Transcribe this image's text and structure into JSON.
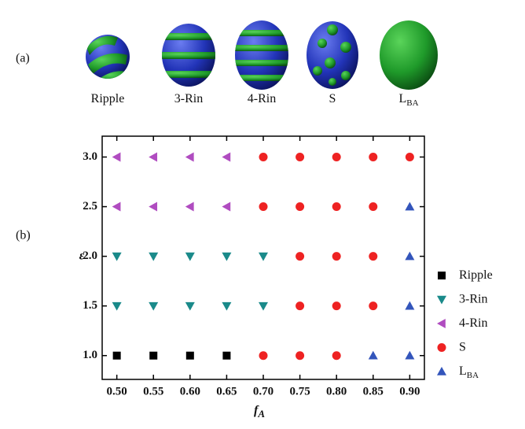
{
  "panel_a": {
    "label": "(a)",
    "shapes": [
      {
        "name": "Ripple"
      },
      {
        "name": "3-Rin"
      },
      {
        "name": "4-Rin"
      },
      {
        "name": "S"
      },
      {
        "name": "L",
        "name_sub": "BA"
      }
    ]
  },
  "panel_b_label": "(b)",
  "chart_data": {
    "type": "scatter",
    "x_label": "f",
    "x_label_sub": "A",
    "y_label": "ε",
    "xlim": [
      0.48,
      0.92
    ],
    "ylim": [
      0.76,
      3.21
    ],
    "xticks": [
      {
        "value": 0.5,
        "label": "0.50"
      },
      {
        "value": 0.55,
        "label": "0.55"
      },
      {
        "value": 0.6,
        "label": "0.60"
      },
      {
        "value": 0.65,
        "label": "0.65"
      },
      {
        "value": 0.7,
        "label": "0.70"
      },
      {
        "value": 0.75,
        "label": "0.75"
      },
      {
        "value": 0.8,
        "label": "0.80"
      },
      {
        "value": 0.85,
        "label": "0.85"
      },
      {
        "value": 0.9,
        "label": "0.90"
      }
    ],
    "yticks": [
      {
        "value": 1,
        "label": "1.0"
      },
      {
        "value": 1.5,
        "label": "1.5"
      },
      {
        "value": 2,
        "label": "2.0"
      },
      {
        "value": 2.5,
        "label": "2.5"
      },
      {
        "value": 3,
        "label": "3.0"
      }
    ],
    "legend": "right",
    "series": [
      {
        "name": "Ripple",
        "marker": "square",
        "color": "#000000",
        "x": [
          0.5,
          0.55,
          0.6,
          0.65
        ],
        "values": [
          1,
          1,
          1,
          1
        ]
      },
      {
        "name": "3-Rin",
        "marker": "triangle-down",
        "color": "#1a8a8a",
        "x": [
          0.5,
          0.55,
          0.6,
          0.65,
          0.7,
          0.5,
          0.55,
          0.6,
          0.65,
          0.7
        ],
        "values": [
          2,
          2,
          2,
          2,
          2,
          1.5,
          1.5,
          1.5,
          1.5,
          1.5
        ]
      },
      {
        "name": "4-Rin",
        "marker": "triangle-left",
        "color": "#b04cc0",
        "x": [
          0.5,
          0.55,
          0.6,
          0.65,
          0.5,
          0.55,
          0.6,
          0.65
        ],
        "values": [
          3,
          3,
          3,
          3,
          2.5,
          2.5,
          2.5,
          2.5
        ]
      },
      {
        "name": "S",
        "marker": "circle",
        "color": "#ee2222",
        "x": [
          0.7,
          0.75,
          0.8,
          0.85,
          0.9,
          0.7,
          0.75,
          0.8,
          0.85,
          0.75,
          0.8,
          0.85,
          0.75,
          0.8,
          0.85,
          0.7,
          0.75,
          0.8
        ],
        "values": [
          3,
          3,
          3,
          3,
          3,
          2.5,
          2.5,
          2.5,
          2.5,
          2,
          2,
          2,
          1.5,
          1.5,
          1.5,
          1,
          1,
          1
        ]
      },
      {
        "name": "L",
        "name_sub": "BA",
        "marker": "triangle-up",
        "color": "#3355bb",
        "x": [
          0.9,
          0.9,
          0.9,
          0.85,
          0.9
        ],
        "values": [
          2.5,
          2,
          1.5,
          1,
          1
        ]
      }
    ]
  }
}
